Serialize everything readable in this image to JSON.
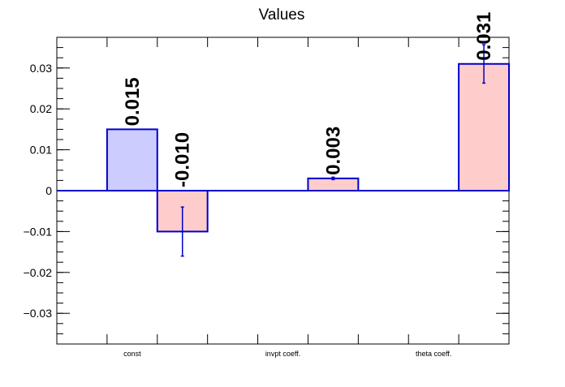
{
  "chart_data": {
    "type": "bar",
    "title": "Values",
    "xlabel": "",
    "ylabel": "",
    "ylim": [
      -0.0375,
      0.0375
    ],
    "yticks": [
      -0.03,
      -0.02,
      -0.01,
      0,
      0.01,
      0.02,
      0.03
    ],
    "ytick_labels": [
      "−0.03",
      "−0.02",
      "−0.01",
      "0",
      "0.01",
      "0.02",
      "0.03"
    ],
    "categories": [
      "const",
      "invpt coeff.",
      "theta coeff."
    ],
    "series": [
      {
        "values": [
          0.015,
          null,
          null
        ],
        "value_labels": [
          "0.015",
          "",
          ""
        ],
        "color": "#ccccff"
      },
      {
        "values": [
          -0.01,
          0.003,
          0.031
        ],
        "value_labels": [
          "-0.010",
          "0.003",
          "0.031"
        ],
        "errors": [
          0.006,
          0.0003,
          0.0047
        ],
        "color": "#ffcccc"
      }
    ],
    "bar_edge_color": "#0000cc",
    "grid": false,
    "legend": "none"
  }
}
